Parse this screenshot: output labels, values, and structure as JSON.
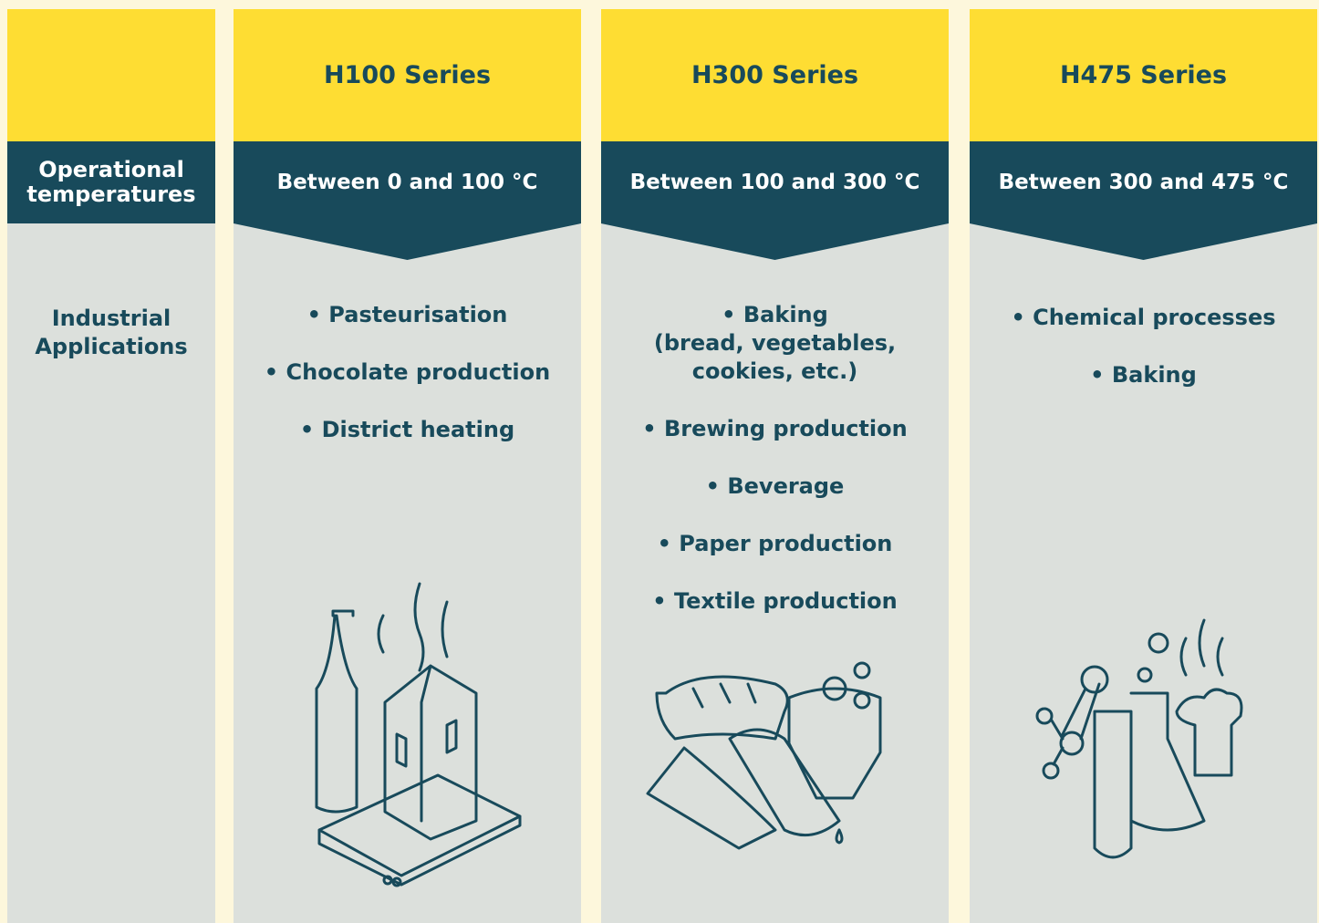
{
  "table": {
    "row_labels": {
      "temperature": "Operational temperatures",
      "applications": "Industrial Applications"
    },
    "columns": [
      {
        "title": "H100 Series",
        "temperature": "Between 0 and 100 °C",
        "applications": [
          "• Pasteurisation",
          "• Chocolate production",
          "• District heating"
        ]
      },
      {
        "title": "H300 Series",
        "temperature": "Between 100 and 300 °C",
        "applications": [
          "• Baking\n(bread, vegetables,\ncookies, etc.)",
          "• Brewing production",
          "• Beverage",
          "• Paper production",
          "• Textile production"
        ]
      },
      {
        "title": "H475 Series",
        "temperature": "Between 300 and 475 °C",
        "applications": [
          "• Chemical processes",
          "• Baking"
        ]
      }
    ]
  }
}
